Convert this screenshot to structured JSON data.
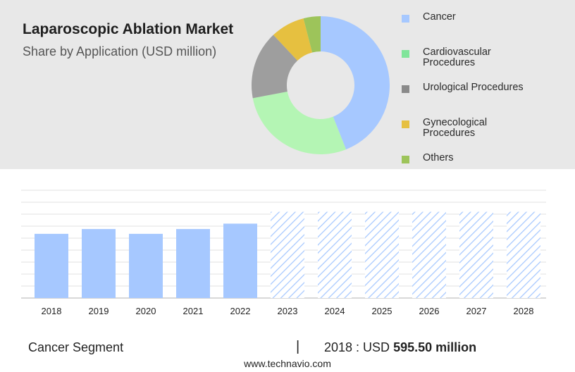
{
  "title": "Laparoscopic Ablation Market",
  "subtitle": "Share by Application (USD million)",
  "footer": {
    "segment_label": "Cancer Segment",
    "separator": "|",
    "year_value_prefix": "2018 : USD",
    "value_text": "595.50 million",
    "website": "www.technavio.com"
  },
  "colors": {
    "cancer": "#a6c8ff",
    "cardiovascular": "#b4f5b4",
    "urological": "#9e9e9e",
    "gynecological": "#e6c040",
    "others": "#9dc45a",
    "bar": "#a6c8ff",
    "forecast_hatch": "#a6c8ff"
  },
  "chart_data": [
    {
      "type": "pie",
      "donut": true,
      "categories": [
        "Cancer",
        "Cardiovascular Procedures",
        "Urological Procedures",
        "Gynecological Procedures",
        "Others"
      ],
      "values": [
        44,
        28,
        16,
        8,
        4
      ],
      "legend_position": "right"
    },
    {
      "type": "bar",
      "categories": [
        "2018",
        "2019",
        "2020",
        "2021",
        "2022",
        "2023",
        "2024",
        "2025",
        "2026",
        "2027",
        "2028"
      ],
      "values": [
        595.5,
        640,
        595.5,
        640,
        690,
        800,
        800,
        800,
        800,
        800,
        800
      ],
      "forecast_from": "2023",
      "ylim": [
        0,
        1000
      ],
      "grid": true
    }
  ]
}
